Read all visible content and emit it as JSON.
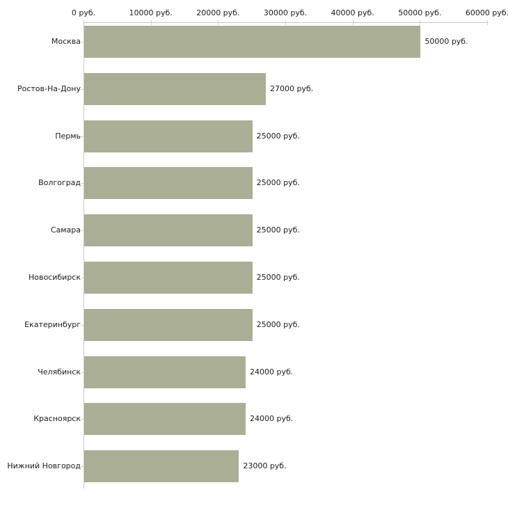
{
  "chart_data": {
    "type": "bar",
    "orientation": "horizontal",
    "title": "",
    "xlabel": "",
    "ylabel": "",
    "unit": "руб.",
    "categories": [
      "Москва",
      "Ростов-На-Дону",
      "Пермь",
      "Волгоград",
      "Самара",
      "Новосибирск",
      "Екатеринбург",
      "Челябинск",
      "Красноярск",
      "Нижний Новгород"
    ],
    "values": [
      50000,
      27000,
      25000,
      25000,
      25000,
      25000,
      25000,
      24000,
      24000,
      23000
    ],
    "value_labels": [
      "50000 руб.",
      "27000 руб.",
      "25000 руб.",
      "25000 руб.",
      "25000 руб.",
      "25000 руб.",
      "25000 руб.",
      "24000 руб.",
      "24000 руб.",
      "23000 руб."
    ],
    "x_ticks": [
      0,
      10000,
      20000,
      30000,
      40000,
      50000,
      60000
    ],
    "x_tick_labels": [
      "0 руб.",
      "10000 руб.",
      "20000 руб.",
      "30000 руб.",
      "40000 руб.",
      "50000 руб.",
      "60000 руб."
    ],
    "xlim": [
      0,
      60000
    ],
    "grid": false,
    "legend": false,
    "axis_position": "top",
    "colors": {
      "bar": "#a9ae95",
      "axis_line": "#c8c8c0",
      "tick_mark": "#d4d4ac",
      "text": "#1a1a1a",
      "background": "#ffffff"
    }
  }
}
